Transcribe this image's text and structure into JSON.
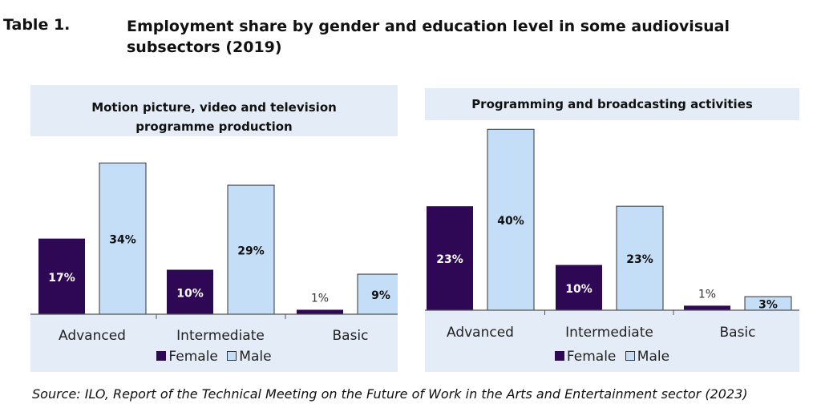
{
  "header": {
    "label": "Table 1.",
    "title": "Employment share by gender and education level in some audiovisual subsectors (2019)"
  },
  "legend": {
    "female": "Female",
    "male": "Male"
  },
  "colors": {
    "female": "#2e0854",
    "male": "#c5def7",
    "panel_bg": "#e4edf7",
    "plot_bg": "#ffffff"
  },
  "source": "Source: ILO, Report of the Technical Meeting on the Future of Work in the Arts and Entertainment sector (2023)",
  "chart_data": [
    {
      "type": "bar",
      "title": "Motion picture, video and television programme production",
      "categories": [
        "Advanced",
        "Intermediate",
        "Basic"
      ],
      "series": [
        {
          "name": "Female",
          "values": [
            17,
            10,
            1
          ],
          "labels": [
            "17%",
            "10%",
            "1%"
          ]
        },
        {
          "name": "Male",
          "values": [
            34,
            29,
            9
          ],
          "labels": [
            "34%",
            "29%",
            "9%"
          ]
        }
      ],
      "ylim": [
        0,
        40
      ],
      "legend": "bottom",
      "grid": false
    },
    {
      "type": "bar",
      "title": "Programming and broadcasting activities",
      "categories": [
        "Advanced",
        "Intermediate",
        "Basic"
      ],
      "series": [
        {
          "name": "Female",
          "values": [
            23,
            10,
            1
          ],
          "labels": [
            "23%",
            "10%",
            "1%"
          ]
        },
        {
          "name": "Male",
          "values": [
            40,
            23,
            3
          ],
          "labels": [
            "40%",
            "23%",
            "3%"
          ]
        }
      ],
      "ylim": [
        0,
        42
      ],
      "legend": "bottom",
      "grid": false
    }
  ]
}
